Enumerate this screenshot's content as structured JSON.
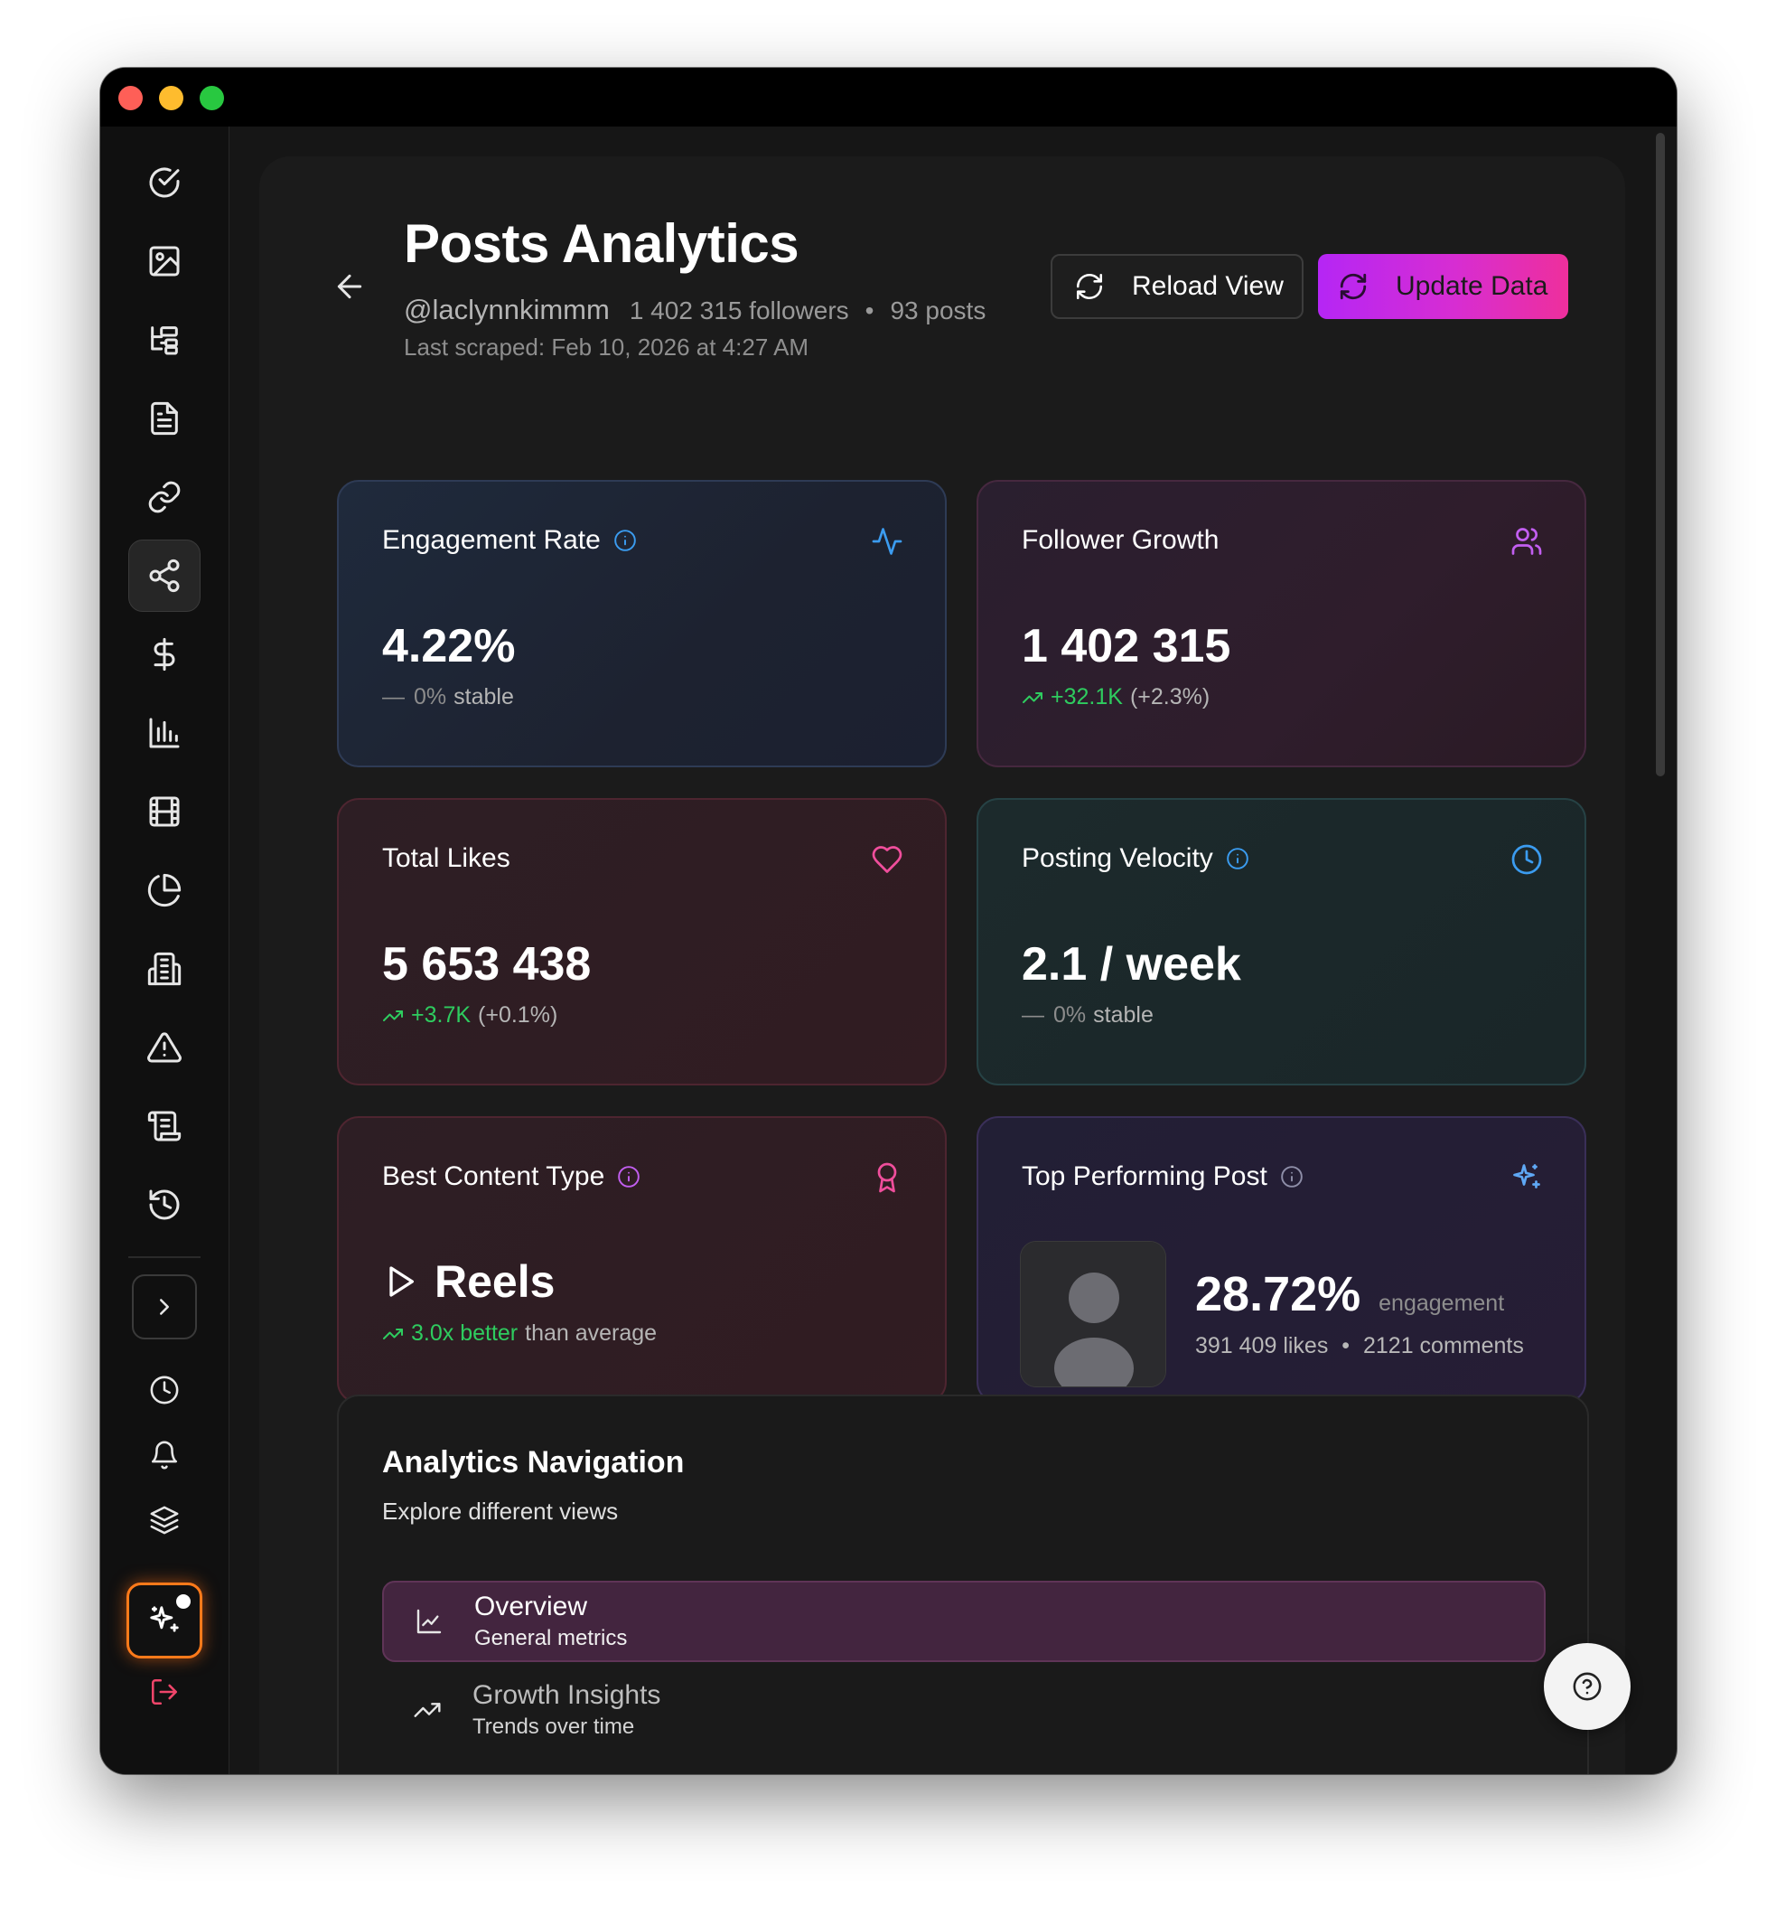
{
  "header": {
    "title": "Posts Analytics",
    "handle": "@laclynnkimmm",
    "followers": "1 402 315 followers",
    "separator": "•",
    "posts": "93 posts",
    "last_scraped": "Last scraped: Feb 10, 2026 at 4:27 AM",
    "reload_label": "Reload View",
    "update_label": "Update Data"
  },
  "cards": {
    "engagement": {
      "title": "Engagement Rate",
      "value": "4.22%",
      "delta_symbol": "—",
      "delta": "0%",
      "delta_note": "stable"
    },
    "followers": {
      "title": "Follower Growth",
      "value": "1 402 315",
      "delta": "+32.1K",
      "delta_pct": "(+2.3%)"
    },
    "likes": {
      "title": "Total Likes",
      "value": "5 653 438",
      "delta": "+3.7K",
      "delta_pct": "(+0.1%)"
    },
    "velocity": {
      "title": "Posting Velocity",
      "value": "2.1 / week",
      "delta_symbol": "—",
      "delta": "0%",
      "delta_note": "stable"
    },
    "best_type": {
      "title": "Best Content Type",
      "value": "Reels",
      "delta": "3.0x better",
      "delta_note": "than average"
    },
    "top_post": {
      "title": "Top Performing Post",
      "value": "28.72%",
      "value_label": "engagement",
      "likes": "391 409 likes",
      "separator": "•",
      "comments": "2121 comments"
    }
  },
  "navigation": {
    "title": "Analytics Navigation",
    "subtitle": "Explore different views",
    "items": [
      {
        "label": "Overview",
        "sublabel": "General metrics",
        "active": true
      },
      {
        "label": "Growth Insights",
        "sublabel": "Trends over time",
        "active": false
      }
    ]
  },
  "sidebar": {
    "icons": [
      "check-circle-icon",
      "image-icon",
      "hierarchy-icon",
      "document-icon",
      "link-icon",
      "share-icon",
      "dollar-icon",
      "bar-chart-icon",
      "film-icon",
      "pie-chart-icon",
      "building-icon",
      "warning-icon",
      "scroll-icon",
      "history-icon"
    ],
    "active": "share-icon"
  },
  "colors": {
    "accent_gradient_start": "#b526f5",
    "accent_gradient_end": "#ee2f9c",
    "positive": "#2ecc5f",
    "info_blue": "#3b9cf0",
    "pink": "#f04e9c",
    "purple": "#c25ef0"
  }
}
